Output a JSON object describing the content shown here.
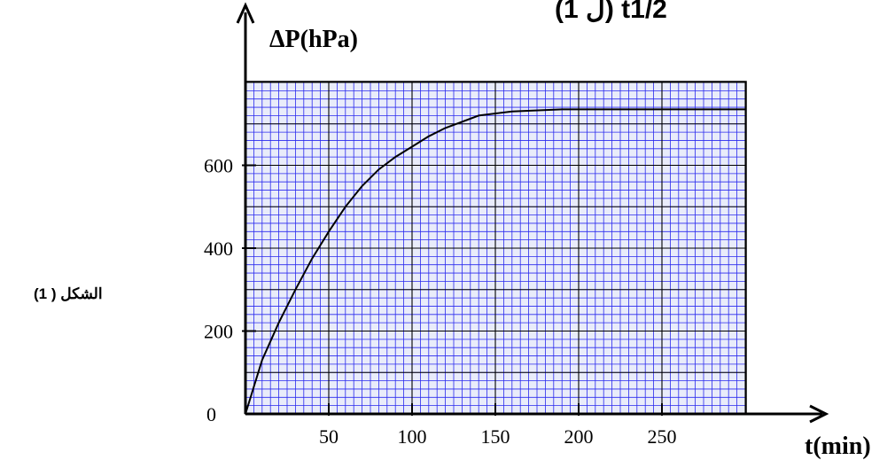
{
  "chart_data": {
    "type": "line",
    "title": "",
    "xlabel": "t(min)",
    "ylabel": "ΔP(hPa)",
    "figure_label": "الشكل ( 1)",
    "header_fragment": "(ل 1)   t1/2",
    "xlim": [
      0,
      300
    ],
    "ylim": [
      0,
      800
    ],
    "x_ticks": [
      50,
      100,
      150,
      200,
      250
    ],
    "y_ticks": [
      0,
      200,
      400,
      600
    ],
    "grid": true,
    "grid_minor_x": 5,
    "grid_minor_y": 20,
    "series": [
      {
        "x": [
          0,
          5,
          10,
          20,
          30,
          40,
          50,
          60,
          70,
          80,
          90,
          100,
          110,
          120,
          140,
          160,
          190,
          220,
          250,
          300
        ],
        "y": [
          0,
          65,
          130,
          220,
          300,
          375,
          440,
          500,
          550,
          590,
          620,
          645,
          670,
          690,
          720,
          730,
          735,
          735,
          735,
          735
        ]
      }
    ],
    "colors": {
      "grid_minor": "#2a2aee",
      "grid_major": "#000000",
      "plot_bg": "#e9ecfa",
      "curve": "#000000"
    }
  }
}
